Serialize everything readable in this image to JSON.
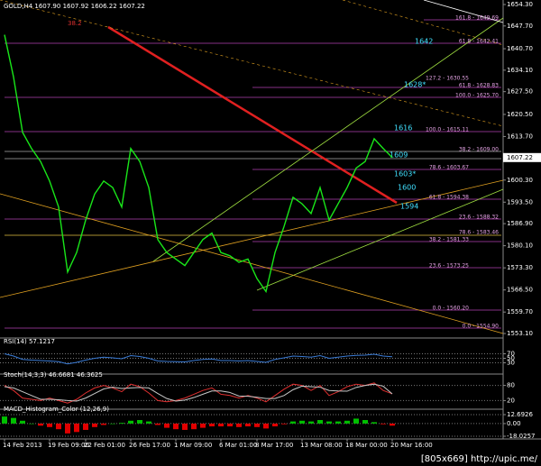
{
  "chart_data": [
    {
      "type": "line",
      "title": "GOLD,H4 1607.90 1607.92 1606.22 1607.22",
      "categories": [
        "14 Feb 2013",
        null,
        null,
        null,
        null,
        "19 Feb 09:00",
        null,
        null,
        null,
        "22 Feb 01:00",
        null,
        null,
        null,
        null,
        "26 Feb 17:00",
        null,
        null,
        null,
        null,
        "1 Mar 09:00",
        null,
        null,
        null,
        null,
        "6 Mar 01:00",
        null,
        null,
        null,
        "8 Mar 17:00",
        null,
        null,
        null,
        null,
        "13 Mar 08:00",
        null,
        null,
        null,
        null,
        "18 Mar 00:00",
        null,
        null,
        null,
        null,
        "20 Mar 16:00",
        null,
        null,
        null,
        null,
        null,
        null,
        null,
        null,
        null,
        null,
        null
      ],
      "series": [
        {
          "color": "#19e619",
          "values": [
            1645,
            1632,
            1615,
            1610,
            1606,
            1600,
            1592,
            1572,
            1578,
            1588,
            1596,
            1600,
            1598,
            1592,
            1610,
            1606,
            1598,
            1582,
            1578,
            1576,
            1574,
            1578,
            1582,
            1584,
            1578,
            1577,
            1575,
            1576,
            1570,
            1566,
            1578,
            1586,
            1595,
            1593,
            1590,
            1598,
            1588,
            1593,
            1598,
            1604,
            1606,
            1613,
            1610,
            1607.22,
            null,
            null,
            null,
            null,
            null,
            null,
            null,
            null,
            null,
            null,
            null
          ]
        }
      ],
      "ylim": [
        1553.1,
        1654.3
      ],
      "yticks": [
        {
          "value": 1654.3,
          "label": "1654.30"
        },
        {
          "value": 1647.7,
          "label": "1647.70"
        },
        {
          "value": 1640.7,
          "label": "1640.70"
        },
        {
          "value": 1634.1,
          "label": "1634.10"
        },
        {
          "value": 1627.5,
          "label": "1627.50"
        },
        {
          "value": 1620.5,
          "label": "1620.50"
        },
        {
          "value": 1613.7,
          "label": "1613.70"
        },
        {
          "value": 1600.3,
          "label": "1600.30"
        },
        {
          "value": 1593.5,
          "label": "1593.50"
        },
        {
          "value": 1586.9,
          "label": "1586.90"
        },
        {
          "value": 1580.1,
          "label": "1580.10"
        },
        {
          "value": 1573.3,
          "label": "1573.30"
        },
        {
          "value": 1566.5,
          "label": "1566.50"
        },
        {
          "value": 1559.7,
          "label": "1559.70"
        },
        {
          "value": 1553.1,
          "label": "1553.10"
        }
      ],
      "current_price": 1607.22,
      "annotations": [
        "161.8 - 1649.69",
        "61.8 - 1642.41",
        "127.2 - 1630.55",
        "61.8 - 1628.83",
        "100.0 - 1625.70",
        "100.0 - 1615.11",
        "38.2 - 1609.00",
        "78.6 - 1603.67",
        "61.8 - 1594.38",
        "23.6 - 1588.32",
        "78.6 - 1583.46",
        "38.2 - 1581.33",
        "23.6 - 1573.25",
        "0.0 - 1560.20",
        "0.0 - 1554.90",
        "1642",
        "1628*",
        "1616",
        "1609",
        "1603*",
        "1600",
        "1594",
        "38.2"
      ]
    },
    {
      "type": "line",
      "title": "RSI(14) 57.1217",
      "ylim": [
        0,
        100
      ],
      "yticks": [
        30,
        50,
        70
      ],
      "series": [
        {
          "color": "#3a7bd5",
          "values": [
            70,
            60,
            45,
            42,
            40,
            38,
            35,
            25,
            32,
            42,
            50,
            55,
            52,
            48,
            62,
            58,
            50,
            38,
            36,
            35,
            34,
            40,
            45,
            47,
            40,
            40,
            38,
            40,
            36,
            32,
            45,
            52,
            60,
            58,
            55,
            62,
            50,
            55,
            60,
            63,
            64,
            68,
            60,
            57.1217
          ]
        }
      ]
    },
    {
      "type": "line",
      "title": "Stoch(14,3,3) 46.6681 46.3625",
      "ylim": [
        0,
        100
      ],
      "yticks": [
        20,
        80
      ],
      "series": [
        {
          "color": "#e03030",
          "values": [
            80,
            60,
            30,
            25,
            20,
            30,
            20,
            10,
            25,
            50,
            70,
            80,
            70,
            55,
            85,
            75,
            50,
            20,
            15,
            20,
            30,
            45,
            60,
            70,
            45,
            40,
            30,
            40,
            30,
            15,
            40,
            65,
            85,
            80,
            60,
            80,
            40,
            55,
            75,
            85,
            80,
            90,
            60,
            46.6681
          ]
        },
        {
          "color": "#c8c8c8",
          "values": [
            75,
            70,
            55,
            40,
            25,
            25,
            23,
            20,
            18,
            30,
            48,
            66,
            73,
            68,
            70,
            72,
            70,
            48,
            28,
            18,
            22,
            32,
            45,
            58,
            58,
            52,
            38,
            37,
            33,
            28,
            28,
            40,
            63,
            77,
            75,
            73,
            60,
            58,
            57,
            72,
            80,
            85,
            77,
            46.3625
          ]
        }
      ]
    },
    {
      "type": "histogram-bars",
      "title": "MACD_Histogram_Color (12,26,9)",
      "ylim": [
        -18.0257,
        12.6926
      ],
      "yticks": [
        12.6926,
        {
          "value": 0,
          "label": "0.00"
        },
        -18.0257
      ],
      "color": "#00c000",
      "negative_color": "#e00000",
      "values": [
        10,
        8,
        4,
        0,
        -3,
        -5,
        -8,
        -14,
        -12,
        -9,
        -5,
        -2,
        0,
        1,
        4,
        5,
        3,
        -2,
        -6,
        -8,
        -9,
        -8,
        -6,
        -4,
        -4,
        -4,
        -5,
        -4,
        -5,
        -7,
        -4,
        -1,
        3,
        4,
        3,
        5,
        3,
        3,
        4,
        7,
        5,
        2,
        -1,
        -3
      ]
    }
  ],
  "footer": "[805x669] http://upic.me/"
}
